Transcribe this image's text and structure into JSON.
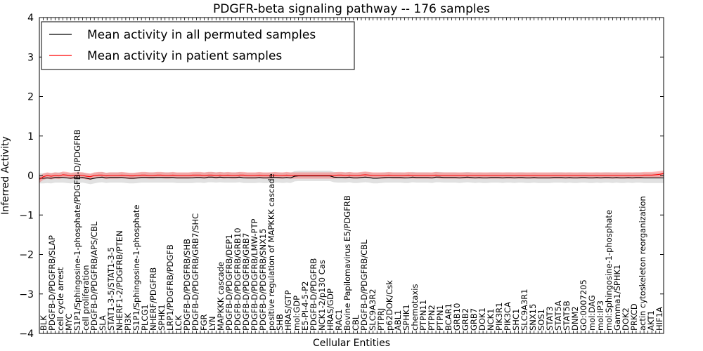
{
  "chart_data": {
    "type": "line",
    "title": "PDGFR-beta signaling pathway -- 176 samples",
    "xlabel": "Cellular Entities",
    "ylabel": "Inferred Activity",
    "ylim": [
      -4,
      4
    ],
    "yticks": [
      -4,
      -3,
      -2,
      -1,
      0,
      1,
      2,
      3,
      4
    ],
    "ytick_labels": [
      "−4",
      "−3",
      "−2",
      "−1",
      "0",
      "1",
      "2",
      "3",
      "4"
    ],
    "legend_position": "top-left",
    "legend": [
      "Mean activity in all permuted samples",
      "Mean activity in patient samples"
    ],
    "colors": {
      "permuted": "#000000",
      "patient": "#ff0000",
      "permuted_band": "#c8c8c8",
      "patient_band": "#ff6464"
    },
    "x_count": 160,
    "entities": [
      "BLK",
      "PDGFB-D/PDGFRB/SLAP",
      "cell cycle arrest",
      "MYC",
      "S1P1/Sphingosine-1-phosphate/PDGFB-D/PDGFRB",
      "cell proliferation",
      "PDGFB-D/PDGFRB/APS/CBL",
      "SLA",
      "STAT1-3-5/STAT1-3-5",
      "NHERF1-2/PDGFRB/PTEN",
      "PI3K",
      "S1P1/Sphingosine-1-phosphate",
      "PLCG1",
      "NHERF/PDGFRB",
      "SPHK1",
      "LRP1/PDGFRB/PDGFB",
      "LCK",
      "PDGFB-D/PDGFRB/SHB",
      "PDGFB-D/PDGFRB/GRB7/SHC",
      "FGR",
      "LYN",
      "MAPKKK cascade",
      "PDGFB-D/PDGFRB/DEP1",
      "PDGFB-D/PDGFRB/GRB10",
      "PDGFB-D/PDGFRB/GRB7",
      "PDGFB-D/PDGFRB/LMW-PTP",
      "PDGFB-D/PDGFRB/SNX15",
      "positive regulation of MAPKKK cascade",
      "SHB",
      "HRAS/GTP",
      "mol:GDP",
      "E5-PI-4-5-P2",
      "PDGFB-D/PDGFRB",
      "NCK1-2/p130 Cas",
      "HRAS/GDP",
      "RAC1",
      "Bovine Papilomavirus E5/PDGFRB",
      "CBL",
      "PDGFB-D/PDGFRB/CBL",
      "SLC9A3R2",
      "PTPRJ",
      "p62DOK/Csk",
      "ABL1",
      "SPHK1",
      "chemotaxis",
      "PTPN11",
      "PTPN2",
      "PTPN1",
      "BCAR1",
      "GRB10",
      "GRB2",
      "GRB7",
      "DOK1",
      "NCK1",
      "PIK3R1",
      "PIK3CA",
      "SHC1",
      "SLC9A3R1",
      "SNX15",
      "SOS1",
      "STAT3",
      "STAT5A",
      "STAT5B",
      "DNM2",
      "GO:0007205",
      "mol:DAG",
      "mol:IP3",
      "mol:Sphingosine-1-phosphate",
      "Gamma1/SPHK1",
      "DOK2",
      "PRKCD",
      "actin cytoskeleton reorganization",
      "AKT1",
      "HIF1A"
    ],
    "series": [
      {
        "name": "Mean activity in all permuted samples",
        "values": [
          -0.07,
          -0.07,
          -0.06,
          -0.07,
          -0.05,
          -0.05,
          -0.05,
          -0.06,
          -0.07,
          -0.05,
          -0.06,
          -0.05,
          -0.07,
          -0.09,
          -0.07,
          -0.05,
          -0.04,
          -0.06,
          -0.05,
          -0.05,
          -0.05,
          -0.05,
          -0.06,
          -0.07,
          -0.07,
          -0.06,
          -0.05,
          -0.05,
          -0.05,
          -0.05,
          -0.05,
          -0.05,
          -0.05,
          -0.05,
          -0.05,
          -0.06,
          -0.06,
          -0.06,
          -0.06,
          -0.06,
          -0.05,
          -0.05,
          -0.06,
          -0.04,
          -0.04,
          -0.05,
          -0.04,
          -0.05,
          -0.05,
          -0.05,
          -0.05,
          -0.04,
          -0.06,
          -0.06,
          -0.06,
          -0.06,
          -0.05,
          -0.06,
          -0.06,
          -0.05,
          -0.05,
          -0.05,
          -0.06,
          -0.05,
          -0.06,
          -0.02,
          -0.01,
          -0.01,
          -0.01,
          -0.01,
          -0.01,
          -0.01,
          -0.01,
          -0.01,
          -0.01,
          -0.04,
          -0.05,
          -0.05,
          -0.05,
          -0.04,
          -0.06,
          -0.06,
          -0.05,
          -0.04,
          -0.05,
          -0.07,
          -0.07,
          -0.06,
          -0.05,
          -0.05,
          -0.05,
          -0.05,
          -0.05,
          -0.06,
          -0.06,
          -0.04,
          -0.05,
          -0.05,
          -0.05,
          -0.05,
          -0.06,
          -0.04,
          -0.04,
          -0.05,
          -0.05,
          -0.05,
          -0.05,
          -0.06,
          -0.05,
          -0.04,
          -0.05,
          -0.06,
          -0.05,
          -0.06,
          -0.06,
          -0.05,
          -0.05,
          -0.05,
          -0.06,
          -0.05,
          -0.05,
          -0.06,
          -0.05,
          -0.05,
          -0.06,
          -0.06,
          -0.05,
          -0.06,
          -0.06,
          -0.06,
          -0.06,
          -0.05,
          -0.05,
          -0.05,
          -0.06,
          -0.05,
          -0.06,
          -0.06,
          -0.05,
          -0.05,
          -0.06,
          -0.06,
          -0.05,
          -0.06,
          -0.05,
          -0.05,
          -0.06,
          -0.05,
          -0.06,
          -0.06,
          -0.05,
          -0.06,
          -0.05,
          -0.05,
          -0.06,
          -0.06,
          -0.06,
          -0.06,
          -0.06,
          -0.06
        ],
        "band": 0.13
      },
      {
        "name": "Mean activity in patient samples",
        "values": [
          -0.1,
          -0.03,
          0.0,
          -0.02,
          0.0,
          -0.01,
          0.02,
          0.01,
          -0.01,
          0.0,
          0.01,
          0.0,
          -0.02,
          -0.03,
          0.0,
          0.01,
          0.01,
          -0.01,
          0.0,
          0.0,
          0.0,
          0.01,
          0.0,
          -0.01,
          -0.01,
          0.0,
          0.01,
          0.01,
          0.0,
          0.0,
          0.01,
          0.01,
          0.0,
          0.0,
          0.01,
          0.0,
          0.0,
          0.0,
          0.0,
          0.01,
          0.01,
          0.01,
          0.0,
          0.01,
          0.01,
          0.0,
          0.01,
          0.0,
          0.01,
          0.0,
          0.0,
          0.01,
          0.01,
          0.0,
          0.0,
          0.0,
          0.01,
          0.0,
          0.0,
          0.0,
          0.01,
          0.0,
          0.0,
          0.01,
          0.0,
          0.0,
          0.0,
          0.0,
          0.0,
          0.0,
          0.0,
          0.0,
          0.0,
          0.0,
          0.0,
          0.0,
          0.01,
          0.01,
          0.0,
          0.01,
          0.0,
          0.0,
          0.01,
          0.02,
          0.01,
          0.0,
          0.0,
          0.0,
          0.0,
          0.01,
          0.0,
          0.0,
          0.0,
          0.0,
          0.01,
          0.0,
          0.0,
          0.0,
          0.0,
          0.0,
          0.0,
          0.01,
          0.0,
          0.0,
          0.0,
          0.0,
          0.0,
          0.0,
          0.0,
          0.0,
          0.0,
          0.0,
          0.0,
          0.0,
          0.0,
          0.0,
          0.0,
          0.0,
          0.0,
          0.0,
          0.0,
          0.0,
          0.0,
          0.0,
          0.0,
          0.0,
          0.0,
          0.0,
          0.0,
          0.0,
          0.0,
          0.0,
          0.0,
          0.0,
          0.0,
          0.0,
          0.0,
          0.0,
          0.0,
          0.0,
          0.0,
          0.0,
          0.0,
          0.0,
          0.0,
          0.0,
          0.0,
          0.0,
          0.0,
          0.0,
          0.0,
          0.0,
          0.0,
          0.0,
          0.01,
          0.01,
          0.01,
          0.02,
          0.03,
          0.05
        ],
        "band": 0.08
      }
    ]
  }
}
